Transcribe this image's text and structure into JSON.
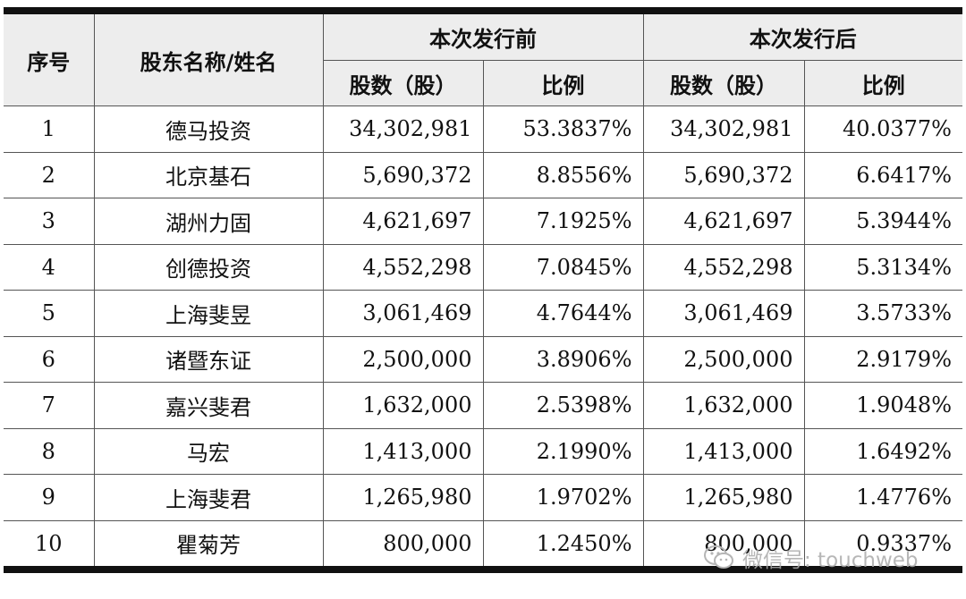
{
  "header": {
    "index": "序号",
    "name": "股东名称/姓名",
    "before": "本次发行前",
    "after": "本次发行后",
    "shares": "股数（股）",
    "ratio": "比例"
  },
  "rows": [
    {
      "index": "1",
      "name": "德马投资",
      "before_shares": "34,302,981",
      "before_ratio": "53.3837%",
      "after_shares": "34,302,981",
      "after_ratio": "40.0377%"
    },
    {
      "index": "2",
      "name": "北京基石",
      "before_shares": "5,690,372",
      "before_ratio": "8.8556%",
      "after_shares": "5,690,372",
      "after_ratio": "6.6417%"
    },
    {
      "index": "3",
      "name": "湖州力固",
      "before_shares": "4,621,697",
      "before_ratio": "7.1925%",
      "after_shares": "4,621,697",
      "after_ratio": "5.3944%"
    },
    {
      "index": "4",
      "name": "创德投资",
      "before_shares": "4,552,298",
      "before_ratio": "7.0845%",
      "after_shares": "4,552,298",
      "after_ratio": "5.3134%"
    },
    {
      "index": "5",
      "name": "上海斐昱",
      "before_shares": "3,061,469",
      "before_ratio": "4.7644%",
      "after_shares": "3,061,469",
      "after_ratio": "3.5733%"
    },
    {
      "index": "6",
      "name": "诸暨东证",
      "before_shares": "2,500,000",
      "before_ratio": "3.8906%",
      "after_shares": "2,500,000",
      "after_ratio": "2.9179%"
    },
    {
      "index": "7",
      "name": "嘉兴斐君",
      "before_shares": "1,632,000",
      "before_ratio": "2.5398%",
      "after_shares": "1,632,000",
      "after_ratio": "1.9048%"
    },
    {
      "index": "8",
      "name": "马宏",
      "before_shares": "1,413,000",
      "before_ratio": "2.1990%",
      "after_shares": "1,413,000",
      "after_ratio": "1.6492%"
    },
    {
      "index": "9",
      "name": "上海斐君",
      "before_shares": "1,265,980",
      "before_ratio": "1.9702%",
      "after_shares": "1,265,980",
      "after_ratio": "1.4776%"
    },
    {
      "index": "10",
      "name": "瞿菊芳",
      "before_shares": "800,000",
      "before_ratio": "1.2450%",
      "after_shares": "800,000",
      "after_ratio": "0.9337%"
    }
  ],
  "watermark": {
    "text": "微信号: touchweb",
    "icon": "wechat-icon",
    "color": "#aaaaaa"
  }
}
